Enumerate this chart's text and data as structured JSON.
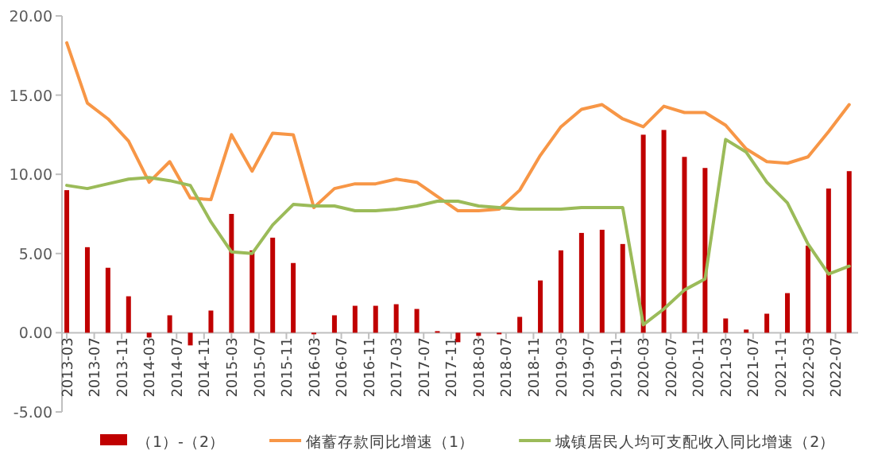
{
  "chart_data": {
    "type": "bar",
    "x": [
      "2013-03",
      "2013-06",
      "2013-09",
      "2013-12",
      "2014-03",
      "2014-06",
      "2014-09",
      "2014-12",
      "2015-03",
      "2015-06",
      "2015-09",
      "2015-12",
      "2016-03",
      "2016-06",
      "2016-09",
      "2016-12",
      "2017-03",
      "2017-06",
      "2017-09",
      "2017-12",
      "2018-03",
      "2018-06",
      "2018-09",
      "2018-12",
      "2019-03",
      "2019-06",
      "2019-09",
      "2019-12",
      "2020-03",
      "2020-06",
      "2020-09",
      "2020-12",
      "2021-03",
      "2021-06",
      "2021-09",
      "2021-12",
      "2022-03",
      "2022-06",
      "2022-09"
    ],
    "series": [
      {
        "name": "（1）-（2）",
        "color": "#c00000",
        "values": [
          9.0,
          5.4,
          4.1,
          2.3,
          -0.3,
          1.1,
          -0.8,
          1.4,
          7.5,
          5.2,
          6.0,
          4.4,
          -0.1,
          1.1,
          1.7,
          1.7,
          1.8,
          1.5,
          0.1,
          -0.6,
          -0.2,
          -0.1,
          1.0,
          3.3,
          5.2,
          6.3,
          6.5,
          5.6,
          12.5,
          12.8,
          11.1,
          10.4,
          0.9,
          0.2,
          1.2,
          2.5,
          5.5,
          9.1,
          10.2
        ]
      },
      {
        "name": "储蓄存款同比增速（1）",
        "type": "line",
        "color": "#f79646",
        "values": [
          18.3,
          14.5,
          13.5,
          12.1,
          9.5,
          10.8,
          8.5,
          8.4,
          12.5,
          10.2,
          12.6,
          12.5,
          7.9,
          9.1,
          9.4,
          9.4,
          9.7,
          9.5,
          8.6,
          7.7,
          7.7,
          7.8,
          9.0,
          11.2,
          13.0,
          14.1,
          14.4,
          13.5,
          13.0,
          14.3,
          13.9,
          13.9,
          13.1,
          11.6,
          10.8,
          10.7,
          11.1,
          12.7,
          14.4
        ]
      },
      {
        "name": "城镇居民人均可支配收入同比增速（2）",
        "type": "line",
        "color": "#9bbb59",
        "values": [
          9.3,
          9.1,
          9.4,
          9.7,
          9.8,
          9.6,
          9.3,
          7.0,
          5.1,
          5.0,
          6.8,
          8.1,
          8.0,
          8.0,
          7.7,
          7.7,
          7.8,
          8.0,
          8.3,
          8.3,
          8.0,
          7.9,
          7.8,
          7.8,
          7.8,
          7.9,
          7.9,
          7.9,
          0.5,
          1.5,
          2.7,
          3.4,
          12.2,
          11.4,
          9.5,
          8.2,
          5.6,
          3.7,
          4.2
        ]
      }
    ],
    "xlim": [
      "2013-02-10",
      "2022-10-10"
    ],
    "xticks": [
      "2013-03",
      "2013-07",
      "2013-11",
      "2014-03",
      "2014-07",
      "2014-11",
      "2015-03",
      "2015-07",
      "2015-11",
      "2016-03",
      "2016-07",
      "2016-11",
      "2017-03",
      "2017-07",
      "2017-11",
      "2018-03",
      "2018-07",
      "2018-11",
      "2019-03",
      "2019-07",
      "2019-11",
      "2020-03",
      "2020-07",
      "2020-11",
      "2021-03",
      "2021-07",
      "2021-11",
      "2022-03",
      "2022-07"
    ],
    "ylim": [
      -5,
      20
    ],
    "yticks": [
      {
        "value": -5,
        "label": "-5.00"
      },
      {
        "value": 0,
        "label": "0.00"
      },
      {
        "value": 5,
        "label": "5.00"
      },
      {
        "value": 10,
        "label": "10.00"
      },
      {
        "value": 15,
        "label": "15.00"
      },
      {
        "value": 20,
        "label": "20.00"
      }
    ],
    "grid": false,
    "legend": "bottom"
  }
}
